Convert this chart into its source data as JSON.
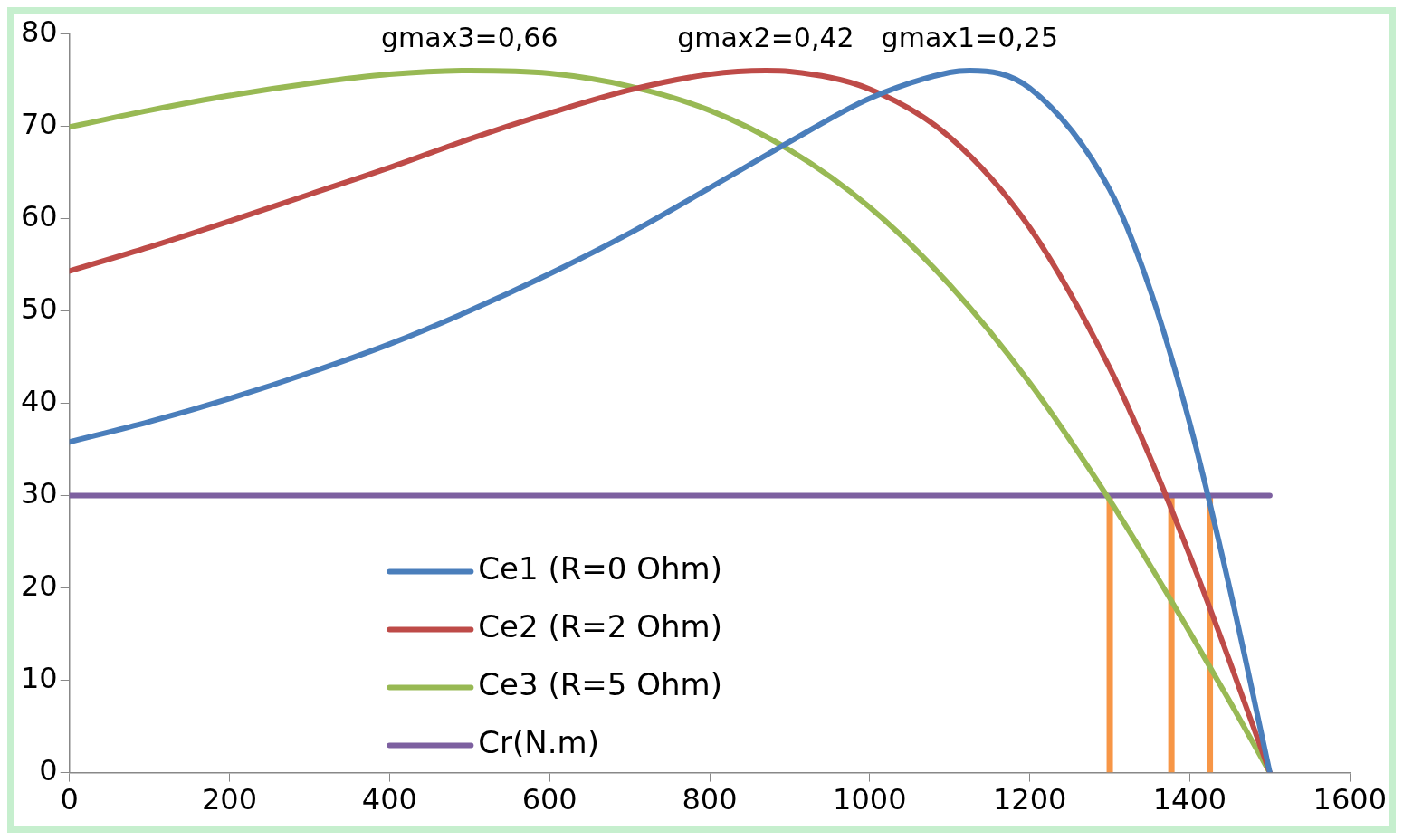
{
  "chart_data": {
    "type": "line",
    "xlim": [
      0,
      1600
    ],
    "xticks": [
      0,
      200,
      400,
      600,
      800,
      1000,
      1200,
      1400,
      1600
    ],
    "ylim": [
      0,
      80
    ],
    "yticks": [
      0,
      10,
      20,
      30,
      40,
      50,
      60,
      70,
      80
    ],
    "grid": false,
    "legend": "bottom left",
    "marker": "none",
    "line_style": "solid",
    "annotations": [
      {
        "text": "gmax3=0,66",
        "x": 500,
        "y": 76
      },
      {
        "text": "gmax2=0,42",
        "x": 870,
        "y": 76
      },
      {
        "text": "gmax1=0,25",
        "x": 1125,
        "y": 76
      }
    ],
    "series": [
      {
        "name": "Ce1 (R=0 Ohm)",
        "color": "#4a7ebb",
        "x": [
          0,
          100,
          200,
          300,
          400,
          500,
          600,
          700,
          800,
          900,
          1000,
          1100,
          1125,
          1200,
          1300,
          1350,
          1400,
          1450,
          1500
        ],
        "values": [
          35.8,
          38,
          40.5,
          43.3,
          46.4,
          50,
          54,
          58.4,
          63.3,
          68.3,
          73,
          75.8,
          76,
          74.1,
          63.1,
          52.4,
          37.8,
          19.9,
          0
        ]
      },
      {
        "name": "Ce2 (R=2 Ohm)",
        "color": "#be4b48",
        "x": [
          0,
          100,
          200,
          300,
          400,
          500,
          600,
          700,
          800,
          870,
          900,
          1000,
          1100,
          1200,
          1300,
          1350,
          1400,
          1450,
          1500
        ],
        "values": [
          54.3,
          56.9,
          59.7,
          62.6,
          65.5,
          68.6,
          71.4,
          73.9,
          75.6,
          76,
          75.9,
          74,
          68.8,
          59,
          43.8,
          34.2,
          23.5,
          12,
          0
        ]
      },
      {
        "name": "Ce3 (R=5 Ohm)",
        "color": "#98b954",
        "x": [
          0,
          100,
          200,
          300,
          400,
          500,
          600,
          700,
          800,
          900,
          1000,
          1100,
          1200,
          1300,
          1350,
          1400,
          1450,
          1500
        ],
        "values": [
          69.9,
          71.7,
          73.3,
          74.6,
          75.6,
          76,
          75.7,
          74.3,
          71.7,
          67.4,
          61.2,
          52.8,
          42.2,
          29.5,
          22.5,
          15.2,
          7.7,
          0
        ]
      },
      {
        "name": "Cr(N.m)",
        "color": "#7d60a0",
        "x": [
          0,
          1500
        ],
        "values": [
          30,
          30
        ]
      },
      {
        "color": "#f79646",
        "x": [
          1300,
          1300
        ],
        "values": [
          0,
          30
        ]
      },
      {
        "color": "#f79646",
        "x": [
          1377,
          1377
        ],
        "values": [
          0,
          30
        ]
      },
      {
        "color": "#f79646",
        "x": [
          1425,
          1425
        ],
        "values": [
          0,
          30
        ]
      }
    ]
  }
}
